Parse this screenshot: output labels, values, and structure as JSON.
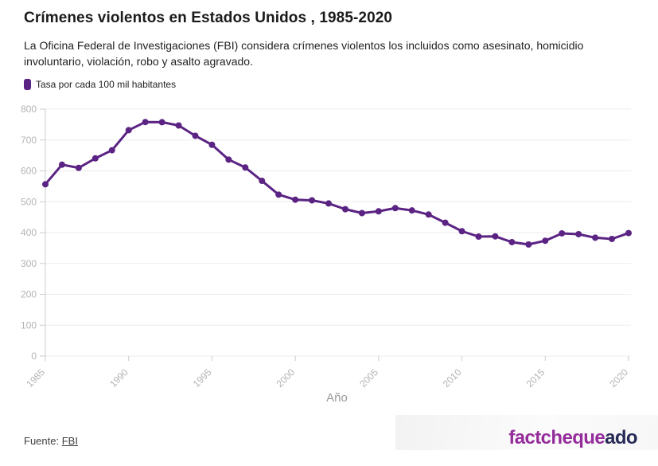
{
  "header": {
    "title": "Crímenes violentos en Estados Unidos , 1985-2020",
    "subtitle": "La Oficina Federal de Investigaciones (FBI) considera crímenes violentos los incluidos como asesinato, homicidio involuntario, violación, robo y asalto agravado."
  },
  "legend": {
    "label": "Tasa por cada 100 mil habitantes",
    "swatch_color": "#5b2383"
  },
  "chart_data": {
    "type": "line",
    "title": "Crímenes violentos en Estados Unidos , 1985-2020",
    "series_name": "Tasa por cada 100 mil habitantes",
    "x": [
      1985,
      1986,
      1987,
      1988,
      1989,
      1990,
      1991,
      1992,
      1993,
      1994,
      1995,
      1996,
      1997,
      1998,
      1999,
      2000,
      2001,
      2002,
      2003,
      2004,
      2005,
      2006,
      2007,
      2008,
      2009,
      2010,
      2011,
      2012,
      2013,
      2014,
      2015,
      2016,
      2017,
      2018,
      2019,
      2020
    ],
    "values": [
      556.6,
      620.1,
      609.7,
      640.6,
      666.9,
      731.8,
      758.2,
      757.7,
      747.1,
      713.6,
      684.5,
      636.6,
      611.0,
      567.6,
      523.0,
      506.5,
      504.5,
      494.4,
      475.8,
      463.2,
      469.0,
      479.3,
      471.8,
      458.6,
      431.9,
      404.5,
      387.1,
      387.8,
      369.1,
      361.6,
      373.7,
      397.5,
      394.9,
      383.4,
      379.4,
      398.5
    ],
    "xlabel": "Año",
    "ylabel": "",
    "ylim": [
      0,
      800
    ],
    "y_ticks": [
      0,
      100,
      200,
      300,
      400,
      500,
      600,
      700,
      800
    ],
    "x_ticks": [
      1985,
      1990,
      1995,
      2000,
      2005,
      2010,
      2015,
      2020
    ],
    "grid": "horizontal",
    "legend_position": "top-left",
    "line_color": "#5b2383",
    "axis_label_color": "#b3b3b3",
    "grid_color": "#ededed",
    "tick_color": "#cccccc",
    "xlabel_color": "#9a9a9a"
  },
  "footer": {
    "source_prefix": "Fuente:",
    "source_link": "FBI",
    "logo": {
      "part1": "factcheque",
      "part2": "ado",
      "color1": "#942d9b",
      "color2": "#272b56"
    }
  }
}
